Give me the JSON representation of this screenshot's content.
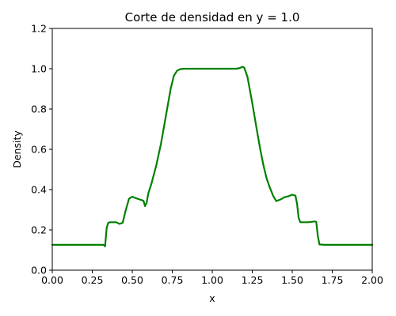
{
  "chart_data": {
    "type": "line",
    "title": "Corte de densidad en y = 1.0",
    "xlabel": "x",
    "ylabel": "Density",
    "xlim": [
      0.0,
      2.0
    ],
    "ylim": [
      0.0,
      1.2
    ],
    "x_ticks": [
      "0.00",
      "0.25",
      "0.50",
      "0.75",
      "1.00",
      "1.25",
      "1.50",
      "1.75",
      "2.00"
    ],
    "y_ticks": [
      "0.0",
      "0.2",
      "0.4",
      "0.6",
      "0.8",
      "1.0",
      "1.2"
    ],
    "grid": false,
    "series": [
      {
        "name": "density",
        "color": "#008000",
        "x": [
          0.0,
          0.3,
          0.32,
          0.33,
          0.34,
          0.35,
          0.36,
          0.4,
          0.42,
          0.44,
          0.46,
          0.48,
          0.5,
          0.52,
          0.55,
          0.57,
          0.58,
          0.59,
          0.6,
          0.62,
          0.65,
          0.68,
          0.7,
          0.72,
          0.74,
          0.76,
          0.78,
          0.8,
          0.83,
          0.9,
          1.0,
          1.1,
          1.15,
          1.17,
          1.19,
          1.2,
          1.22,
          1.25,
          1.28,
          1.3,
          1.32,
          1.34,
          1.36,
          1.38,
          1.4,
          1.43,
          1.45,
          1.48,
          1.5,
          1.52,
          1.53,
          1.54,
          1.55,
          1.6,
          1.64,
          1.65,
          1.66,
          1.67,
          1.7,
          1.8,
          2.0
        ],
        "y": [
          0.126,
          0.126,
          0.126,
          0.118,
          0.21,
          0.235,
          0.238,
          0.238,
          0.23,
          0.235,
          0.3,
          0.355,
          0.365,
          0.358,
          0.35,
          0.345,
          0.318,
          0.335,
          0.38,
          0.43,
          0.52,
          0.63,
          0.72,
          0.81,
          0.9,
          0.965,
          0.99,
          0.998,
          1.0,
          1.0,
          1.0,
          1.0,
          1.0,
          1.003,
          1.01,
          1.005,
          0.96,
          0.83,
          0.69,
          0.6,
          0.52,
          0.455,
          0.41,
          0.37,
          0.343,
          0.352,
          0.362,
          0.368,
          0.375,
          0.37,
          0.33,
          0.26,
          0.238,
          0.238,
          0.242,
          0.24,
          0.17,
          0.128,
          0.126,
          0.126,
          0.126
        ]
      }
    ]
  }
}
